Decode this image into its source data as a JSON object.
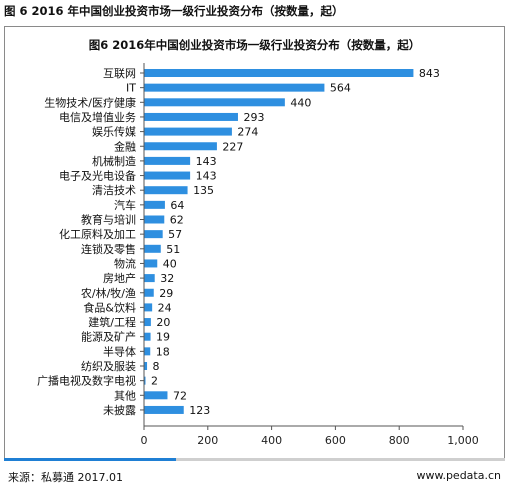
{
  "header": {
    "caption": "图 6 2016 年中国创业投资市场一级行业投资分布（按数量，起）"
  },
  "chart_data": {
    "type": "bar",
    "orientation": "horizontal",
    "title": "图6 2016年中国创业投资市场一级行业投资分布（按数量，起）",
    "xlabel": "",
    "ylabel": "",
    "xlim": [
      0,
      1000
    ],
    "xticks": [
      0,
      200,
      400,
      600,
      800,
      1000
    ],
    "xtick_labels": [
      "0",
      "200",
      "400",
      "600",
      "800",
      "1,000"
    ],
    "grid": false,
    "legend": "none",
    "bar_color": "#2e8fe0",
    "categories": [
      "互联网",
      "IT",
      "生物技术/医疗健康",
      "电信及增值业务",
      "娱乐传媒",
      "金融",
      "机械制造",
      "电子及光电设备",
      "清洁技术",
      "汽车",
      "教育与培训",
      "化工原料及加工",
      "连锁及零售",
      "物流",
      "房地产",
      "农/林/牧/渔",
      "食品&饮料",
      "建筑/工程",
      "能源及矿产",
      "半导体",
      "纺织及服装",
      "广播电视及数字电视",
      "其他",
      "未披露"
    ],
    "values": [
      843,
      564,
      440,
      293,
      274,
      227,
      143,
      143,
      135,
      64,
      62,
      57,
      51,
      40,
      32,
      29,
      24,
      20,
      19,
      18,
      8,
      2,
      72,
      123
    ]
  },
  "footer": {
    "source": "来源：私募通 2017.01",
    "website": "www.pedata.cn",
    "accent_color": "#1f7fd4"
  }
}
